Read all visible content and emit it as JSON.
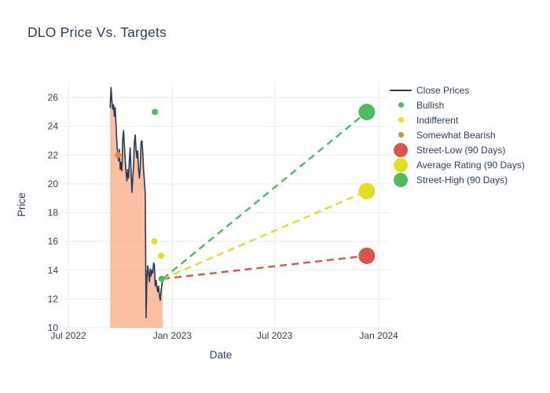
{
  "title": "DLO Price Vs. Targets",
  "colors": {
    "text": "#2a3f5f",
    "grid": "#e5ecf6",
    "close_line": "#2b3a55",
    "area_fill": "#f78c54",
    "bullish": "#4fbb61",
    "indifferent": "#e0e020",
    "somewhat_bearish": "#dd8a33",
    "street_low": "#d9534f",
    "average_rating": "#e0e020",
    "street_high": "#4fbb61"
  },
  "legend": {
    "items": [
      {
        "label": "Close Prices",
        "marker": "line",
        "color": "#2b3a55"
      },
      {
        "label": "Bullish",
        "marker": "dot-small",
        "color": "#4fbb61"
      },
      {
        "label": "Indifferent",
        "marker": "dot-small",
        "color": "#e0e020"
      },
      {
        "label": "Somewhat Bearish",
        "marker": "dot-small",
        "color": "#dd8a33"
      },
      {
        "label": "Street-Low (90 Days)",
        "marker": "dot-large",
        "color": "#d9534f"
      },
      {
        "label": "Average Rating (90 Days)",
        "marker": "dot-large",
        "color": "#e0e020"
      },
      {
        "label": "Street-High (90 Days)",
        "marker": "dot-large",
        "color": "#4fbb61"
      }
    ]
  },
  "chart_data": {
    "type": "line",
    "title": "DLO Price Vs. Targets",
    "xlabel": "Date",
    "ylabel": "Price",
    "ylim": [
      10,
      27.1
    ],
    "yticks": [
      10,
      12,
      14,
      16,
      18,
      20,
      22,
      24,
      26
    ],
    "xticks": [
      {
        "label": "Jul 2022",
        "date": "2022-07-01"
      },
      {
        "label": "Jan 2023",
        "date": "2023-01-01"
      },
      {
        "label": "Jul 2023",
        "date": "2023-07-01"
      },
      {
        "label": "Jan 2024",
        "date": "2024-01-01"
      }
    ],
    "grid": true,
    "legend_position": "right",
    "series": [
      {
        "name": "Close Prices",
        "type": "area-line",
        "color": "#2b3a55",
        "fill": "#f78c54",
        "fill_opacity": 0.55,
        "start_date": "2022-09-13",
        "end_date": "2022-12-15",
        "prices": [
          25.3,
          26.7,
          25.8,
          25.2,
          25.5,
          24.7,
          25.3,
          24.1,
          22.9,
          22.1,
          21.6,
          22.4,
          21.0,
          21.5,
          20.9,
          23.1,
          23.7,
          22.7,
          21.6,
          20.8,
          20.2,
          21.0,
          20.4,
          21.7,
          22.5,
          20.9,
          19.4,
          20.3,
          21.3,
          22.9,
          23.4,
          22.4,
          21.8,
          22.3,
          21.0,
          20.4,
          21.2,
          22.9,
          23.0,
          22.2,
          21.0,
          20.2,
          19.3,
          10.7,
          13.5,
          14.3,
          13.8,
          13.2,
          14.1,
          13.6,
          14.0,
          13.8,
          14.5,
          14.4,
          12.9,
          13.3,
          12.8,
          12.5,
          12.9,
          12.2,
          11.9,
          12.6,
          13.0,
          13.4
        ]
      },
      {
        "name": "Bullish",
        "type": "scatter",
        "color": "#4fbb61",
        "size": "small",
        "points": [
          {
            "date": "2022-12-01",
            "price": 25.0
          },
          {
            "date": "2022-12-13",
            "price": 13.4
          }
        ]
      },
      {
        "name": "Indifferent",
        "type": "scatter",
        "color": "#e0e020",
        "size": "small",
        "points": [
          {
            "date": "2022-11-30",
            "price": 16.0
          },
          {
            "date": "2022-12-12",
            "price": 15.0
          }
        ]
      },
      {
        "name": "Somewhat Bearish",
        "type": "scatter",
        "color": "#dd8a33",
        "size": "small",
        "points": [
          {
            "date": "2022-09-27",
            "price": 22.0
          }
        ]
      },
      {
        "name": "Street-Low (90 Days)",
        "type": "target",
        "color": "#d9534f",
        "date": "2023-12-11",
        "price": 15.0
      },
      {
        "name": "Average Rating (90 Days)",
        "type": "target",
        "color": "#e0e020",
        "date": "2023-12-11",
        "price": 19.5
      },
      {
        "name": "Street-High (90 Days)",
        "type": "target",
        "color": "#4fbb61",
        "date": "2023-12-11",
        "price": 25.0
      }
    ]
  }
}
